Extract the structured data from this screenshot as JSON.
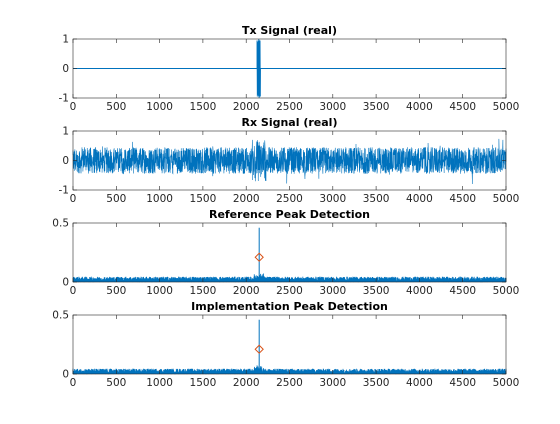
{
  "chart_data": [
    {
      "type": "line",
      "title": "Tx Signal (real)",
      "xlim": [
        0,
        5000
      ],
      "ylim": [
        -1,
        1
      ],
      "xticks": [
        0,
        500,
        1000,
        1500,
        2000,
        2500,
        3000,
        3500,
        4000,
        4500,
        5000
      ],
      "yticks": [
        -1,
        0,
        1
      ],
      "series": [
        {
          "baseline": 0,
          "burst_range": [
            2125,
            2165
          ],
          "burst_amplitude": 1,
          "color": "#0072BD"
        }
      ]
    },
    {
      "type": "line",
      "title": "Rx Signal (real)",
      "xlim": [
        0,
        5000
      ],
      "ylim": [
        -1,
        1
      ],
      "xticks": [
        0,
        500,
        1000,
        1500,
        2000,
        2500,
        3000,
        3500,
        4000,
        4500,
        5000
      ],
      "yticks": [
        -1,
        0,
        1
      ],
      "series": [
        {
          "noise_amplitude": 0.45,
          "peak_amplitude": 0.8,
          "color": "#0072BD"
        }
      ]
    },
    {
      "type": "line",
      "title": "Reference Peak Detection",
      "xlim": [
        0,
        5000
      ],
      "ylim": [
        0,
        0.5
      ],
      "xticks": [
        0,
        500,
        1000,
        1500,
        2000,
        2500,
        3000,
        3500,
        4000,
        4500,
        5000
      ],
      "yticks": [
        0,
        0.5
      ],
      "series": [
        {
          "noise_amplitude": 0.045,
          "spike_x": 2150,
          "spike_y": 0.46,
          "color": "#0072BD"
        }
      ],
      "marker": {
        "x": 2150,
        "y": 0.21,
        "shape": "diamond",
        "color": "#D95319"
      }
    },
    {
      "type": "line",
      "title": "Implementation Peak Detection",
      "xlim": [
        0,
        5000
      ],
      "ylim": [
        0,
        0.5
      ],
      "xticks": [
        0,
        500,
        1000,
        1500,
        2000,
        2500,
        3000,
        3500,
        4000,
        4500,
        5000
      ],
      "yticks": [
        0,
        0.5
      ],
      "series": [
        {
          "noise_amplitude": 0.045,
          "spike_x": 2150,
          "spike_y": 0.46,
          "color": "#0072BD"
        }
      ],
      "marker": {
        "x": 2150,
        "y": 0.21,
        "shape": "diamond",
        "color": "#D95319"
      }
    }
  ]
}
